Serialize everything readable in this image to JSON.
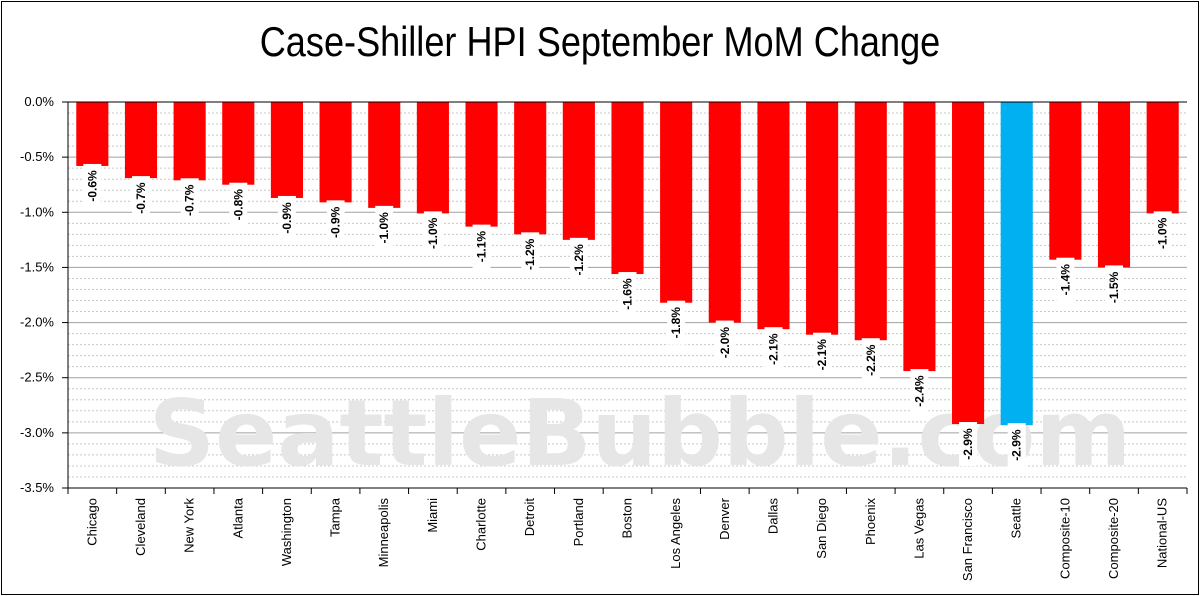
{
  "watermark": "SeattleBubble.com",
  "chart_data": {
    "type": "bar",
    "title": "Case-Shiller HPI September MoM Change",
    "xlabel": "",
    "ylabel": "",
    "ylim": [
      -3.5,
      0
    ],
    "y_ticks": [
      "0.0%",
      "-0.5%",
      "-1.0%",
      "-1.5%",
      "-2.0%",
      "-2.5%",
      "-3.0%",
      "-3.5%"
    ],
    "y_tick_values": [
      0,
      -0.5,
      -1.0,
      -1.5,
      -2.0,
      -2.5,
      -3.0,
      -3.5
    ],
    "grid": true,
    "categories": [
      "Chicago",
      "Cleveland",
      "New York",
      "Atlanta",
      "Washington",
      "Tampa",
      "Minneapolis",
      "Miami",
      "Charlotte",
      "Detroit",
      "Portland",
      "Boston",
      "Los Angeles",
      "Denver",
      "Dallas",
      "San Diego",
      "Phoenix",
      "Las Vegas",
      "San Francisco",
      "Seattle",
      "Composite-10",
      "Composite-20",
      "National-US"
    ],
    "values": [
      -0.58,
      -0.69,
      -0.71,
      -0.75,
      -0.87,
      -0.91,
      -0.96,
      -1.01,
      -1.13,
      -1.2,
      -1.25,
      -1.56,
      -1.82,
      -2.0,
      -2.06,
      -2.11,
      -2.16,
      -2.44,
      -2.92,
      -2.93,
      -1.43,
      -1.5,
      -1.01
    ],
    "data_labels": [
      "-0.6%",
      "-0.7%",
      "-0.7%",
      "-0.8%",
      "-0.9%",
      "-0.9%",
      "-1.0%",
      "-1.0%",
      "-1.1%",
      "-1.2%",
      "-1.2%",
      "-1.6%",
      "-1.8%",
      "-2.0%",
      "-2.1%",
      "-2.1%",
      "-2.2%",
      "-2.4%",
      "-2.9%",
      "-2.9%",
      "-1.4%",
      "-1.5%",
      "-1.0%"
    ],
    "bar_color": "#ff0000",
    "highlight_color": "#00b0f0",
    "highlight_category": "Seattle"
  }
}
